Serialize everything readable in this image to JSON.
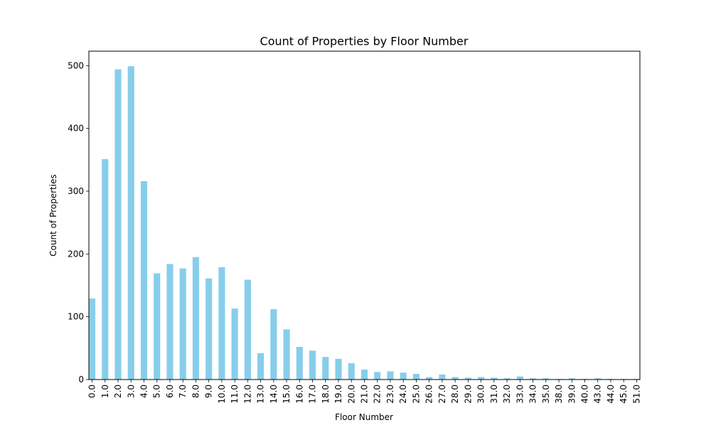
{
  "chart_data": {
    "type": "bar",
    "title": "Count of Properties by Floor Number",
    "xlabel": "Floor Number",
    "ylabel": "Count of Properties",
    "ylim": [
      0,
      523
    ],
    "yticks": [
      0,
      100,
      200,
      300,
      400,
      500
    ],
    "grid": false,
    "legend": "none",
    "bar_color": "#87ceeb",
    "categories": [
      "0.0",
      "1.0",
      "2.0",
      "3.0",
      "4.0",
      "5.0",
      "6.0",
      "7.0",
      "8.0",
      "9.0",
      "10.0",
      "11.0",
      "12.0",
      "13.0",
      "14.0",
      "15.0",
      "16.0",
      "17.0",
      "18.0",
      "19.0",
      "20.0",
      "21.0",
      "22.0",
      "23.0",
      "24.0",
      "25.0",
      "26.0",
      "27.0",
      "28.0",
      "29.0",
      "30.0",
      "31.0",
      "32.0",
      "33.0",
      "34.0",
      "35.0",
      "38.0",
      "39.0",
      "40.0",
      "43.0",
      "44.0",
      "45.0",
      "51.0"
    ],
    "values": [
      129,
      351,
      494,
      499,
      316,
      169,
      184,
      177,
      195,
      161,
      179,
      113,
      159,
      42,
      112,
      80,
      52,
      46,
      36,
      33,
      26,
      16,
      12,
      13,
      11,
      9,
      4,
      8,
      4,
      3,
      4,
      3,
      2,
      5,
      2,
      2,
      1,
      2,
      1,
      2,
      1,
      1,
      1
    ]
  }
}
